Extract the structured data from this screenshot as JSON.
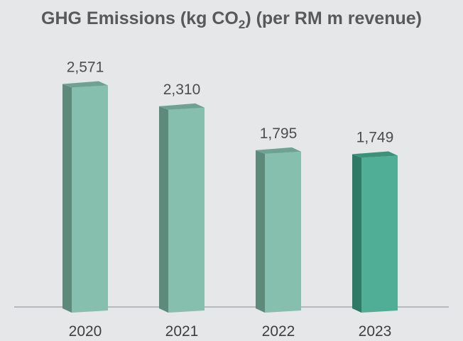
{
  "chart_data": {
    "type": "bar",
    "title_parts": {
      "before": "GHG Emissions (kg CO",
      "subscript": "2",
      "after": ") (per RM m revenue)"
    },
    "categories": [
      "2020",
      "2021",
      "2022",
      "2023"
    ],
    "values": [
      2571,
      2310,
      1795,
      1749
    ],
    "value_labels": [
      "2,571",
      "2,310",
      "1,795",
      "1,749"
    ],
    "xlabel": "",
    "ylabel": "",
    "ylim": [
      0,
      2600
    ],
    "grid": false,
    "legend": "none",
    "colors": {
      "background": "#e6e7e8",
      "bar_front": "#87bfae",
      "bar_side": "#5d8a7b",
      "bar_top": "#6fa292",
      "highlight_front": "#4fae95",
      "highlight_side": "#2f7a66",
      "highlight_top": "#3d9079",
      "axis": "#a7a9ac"
    },
    "highlight_index": 3
  }
}
